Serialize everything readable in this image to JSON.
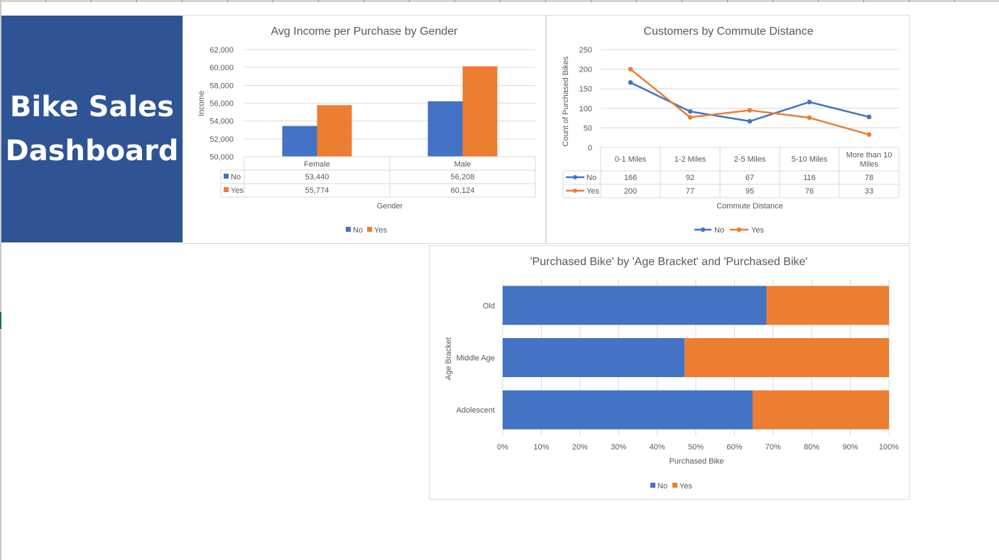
{
  "dashboard": {
    "title_line1": "Bike Sales",
    "title_line2": "Dashboard"
  },
  "colors": {
    "no": "#4472c4",
    "yes": "#ed7d31",
    "banner": "#2f5496"
  },
  "chart_data": [
    {
      "type": "bar",
      "title": "Avg Income per Purchase by Gender",
      "xlabel": "Gender",
      "ylabel": "Income",
      "categories": [
        "Female",
        "Male"
      ],
      "ylim": [
        50000,
        62000
      ],
      "yticks": [
        "62,000",
        "60,000",
        "58,000",
        "56,000",
        "54,000",
        "52,000",
        "50,000"
      ],
      "series": [
        {
          "name": "No",
          "values": [
            53440,
            56208
          ],
          "labels": [
            "53,440",
            "56,208"
          ]
        },
        {
          "name": "Yes",
          "values": [
            55774,
            60124
          ],
          "labels": [
            "55,774",
            "60,124"
          ]
        }
      ],
      "legend": "bottom",
      "data_table": true
    },
    {
      "type": "line",
      "title": "Customers by Commute Distance",
      "xlabel": "Commute Distance",
      "ylabel": "Count of Purchased Bikes",
      "categories": [
        "0-1 Miles",
        "1-2 Miles",
        "2-5 Miles",
        "5-10 Miles",
        "More than 10 Miles"
      ],
      "ylim": [
        0,
        250
      ],
      "yticks": [
        "250",
        "200",
        "150",
        "100",
        "50",
        "0"
      ],
      "series": [
        {
          "name": "No",
          "values": [
            166,
            92,
            67,
            116,
            78
          ]
        },
        {
          "name": "Yes",
          "values": [
            200,
            77,
            95,
            76,
            33
          ]
        }
      ],
      "legend": "bottom",
      "data_table": true
    },
    {
      "type": "bar",
      "orientation": "horizontal",
      "stacked": "percent",
      "title": "'Purchased Bike' by 'Age Bracket' and 'Purchased Bike'",
      "xlabel": "Purchased Bike",
      "ylabel": "Age Bracket",
      "categories": [
        "Old",
        "Middle Age",
        "Adolescent"
      ],
      "xlim": [
        0,
        1
      ],
      "xticks": [
        "0%",
        "10%",
        "20%",
        "30%",
        "40%",
        "50%",
        "60%",
        "70%",
        "80%",
        "90%",
        "100%"
      ],
      "series": [
        {
          "name": "No",
          "values": [
            0.683,
            0.471,
            0.647
          ]
        },
        {
          "name": "Yes",
          "values": [
            0.317,
            0.529,
            0.353
          ]
        }
      ],
      "legend": "bottom"
    }
  ]
}
